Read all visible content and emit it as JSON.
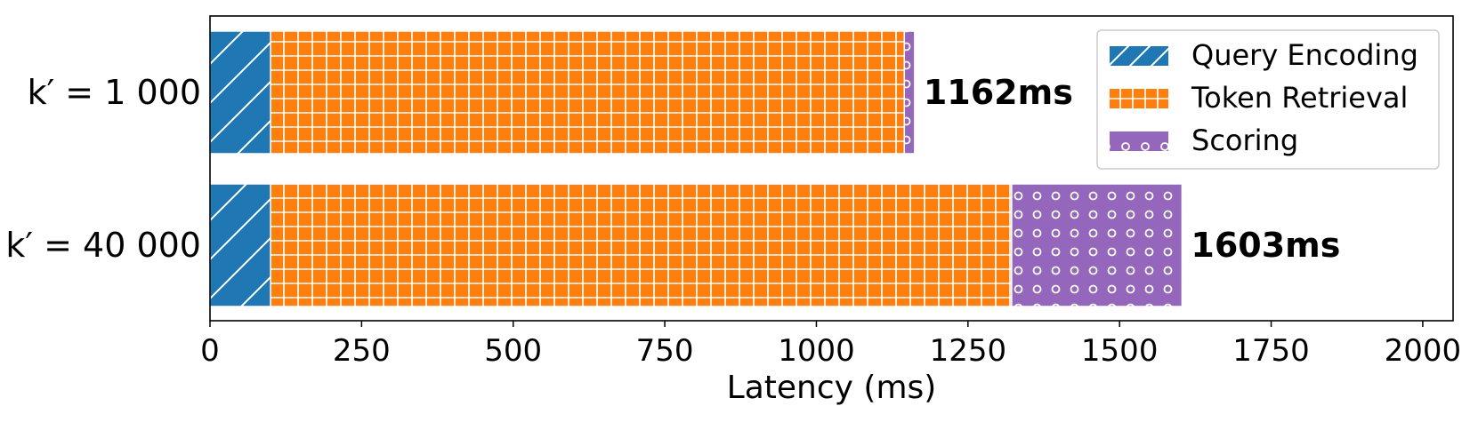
{
  "chart_data": {
    "type": "bar",
    "orientation": "horizontal",
    "stacked": true,
    "categories": [
      "k′ = 1 000",
      "k′ = 40 000"
    ],
    "series": [
      {
        "name": "Query Encoding",
        "values": [
          100,
          100
        ],
        "color": "#1f77b4",
        "pattern": "diagonal-hatch"
      },
      {
        "name": "Token Retrieval",
        "values": [
          1045,
          1222
        ],
        "color": "#ff7f0e",
        "pattern": "grid"
      },
      {
        "name": "Scoring",
        "values": [
          17,
          281
        ],
        "color": "#9467bd",
        "pattern": "circles"
      }
    ],
    "totals": [
      "1162ms",
      "1603ms"
    ],
    "xlabel": "Latency (ms)",
    "xlim": [
      0,
      2050
    ],
    "xticks": [
      0,
      250,
      500,
      750,
      1000,
      1250,
      1500,
      1750,
      2000
    ],
    "grid": false,
    "legend_position": "top-right"
  }
}
